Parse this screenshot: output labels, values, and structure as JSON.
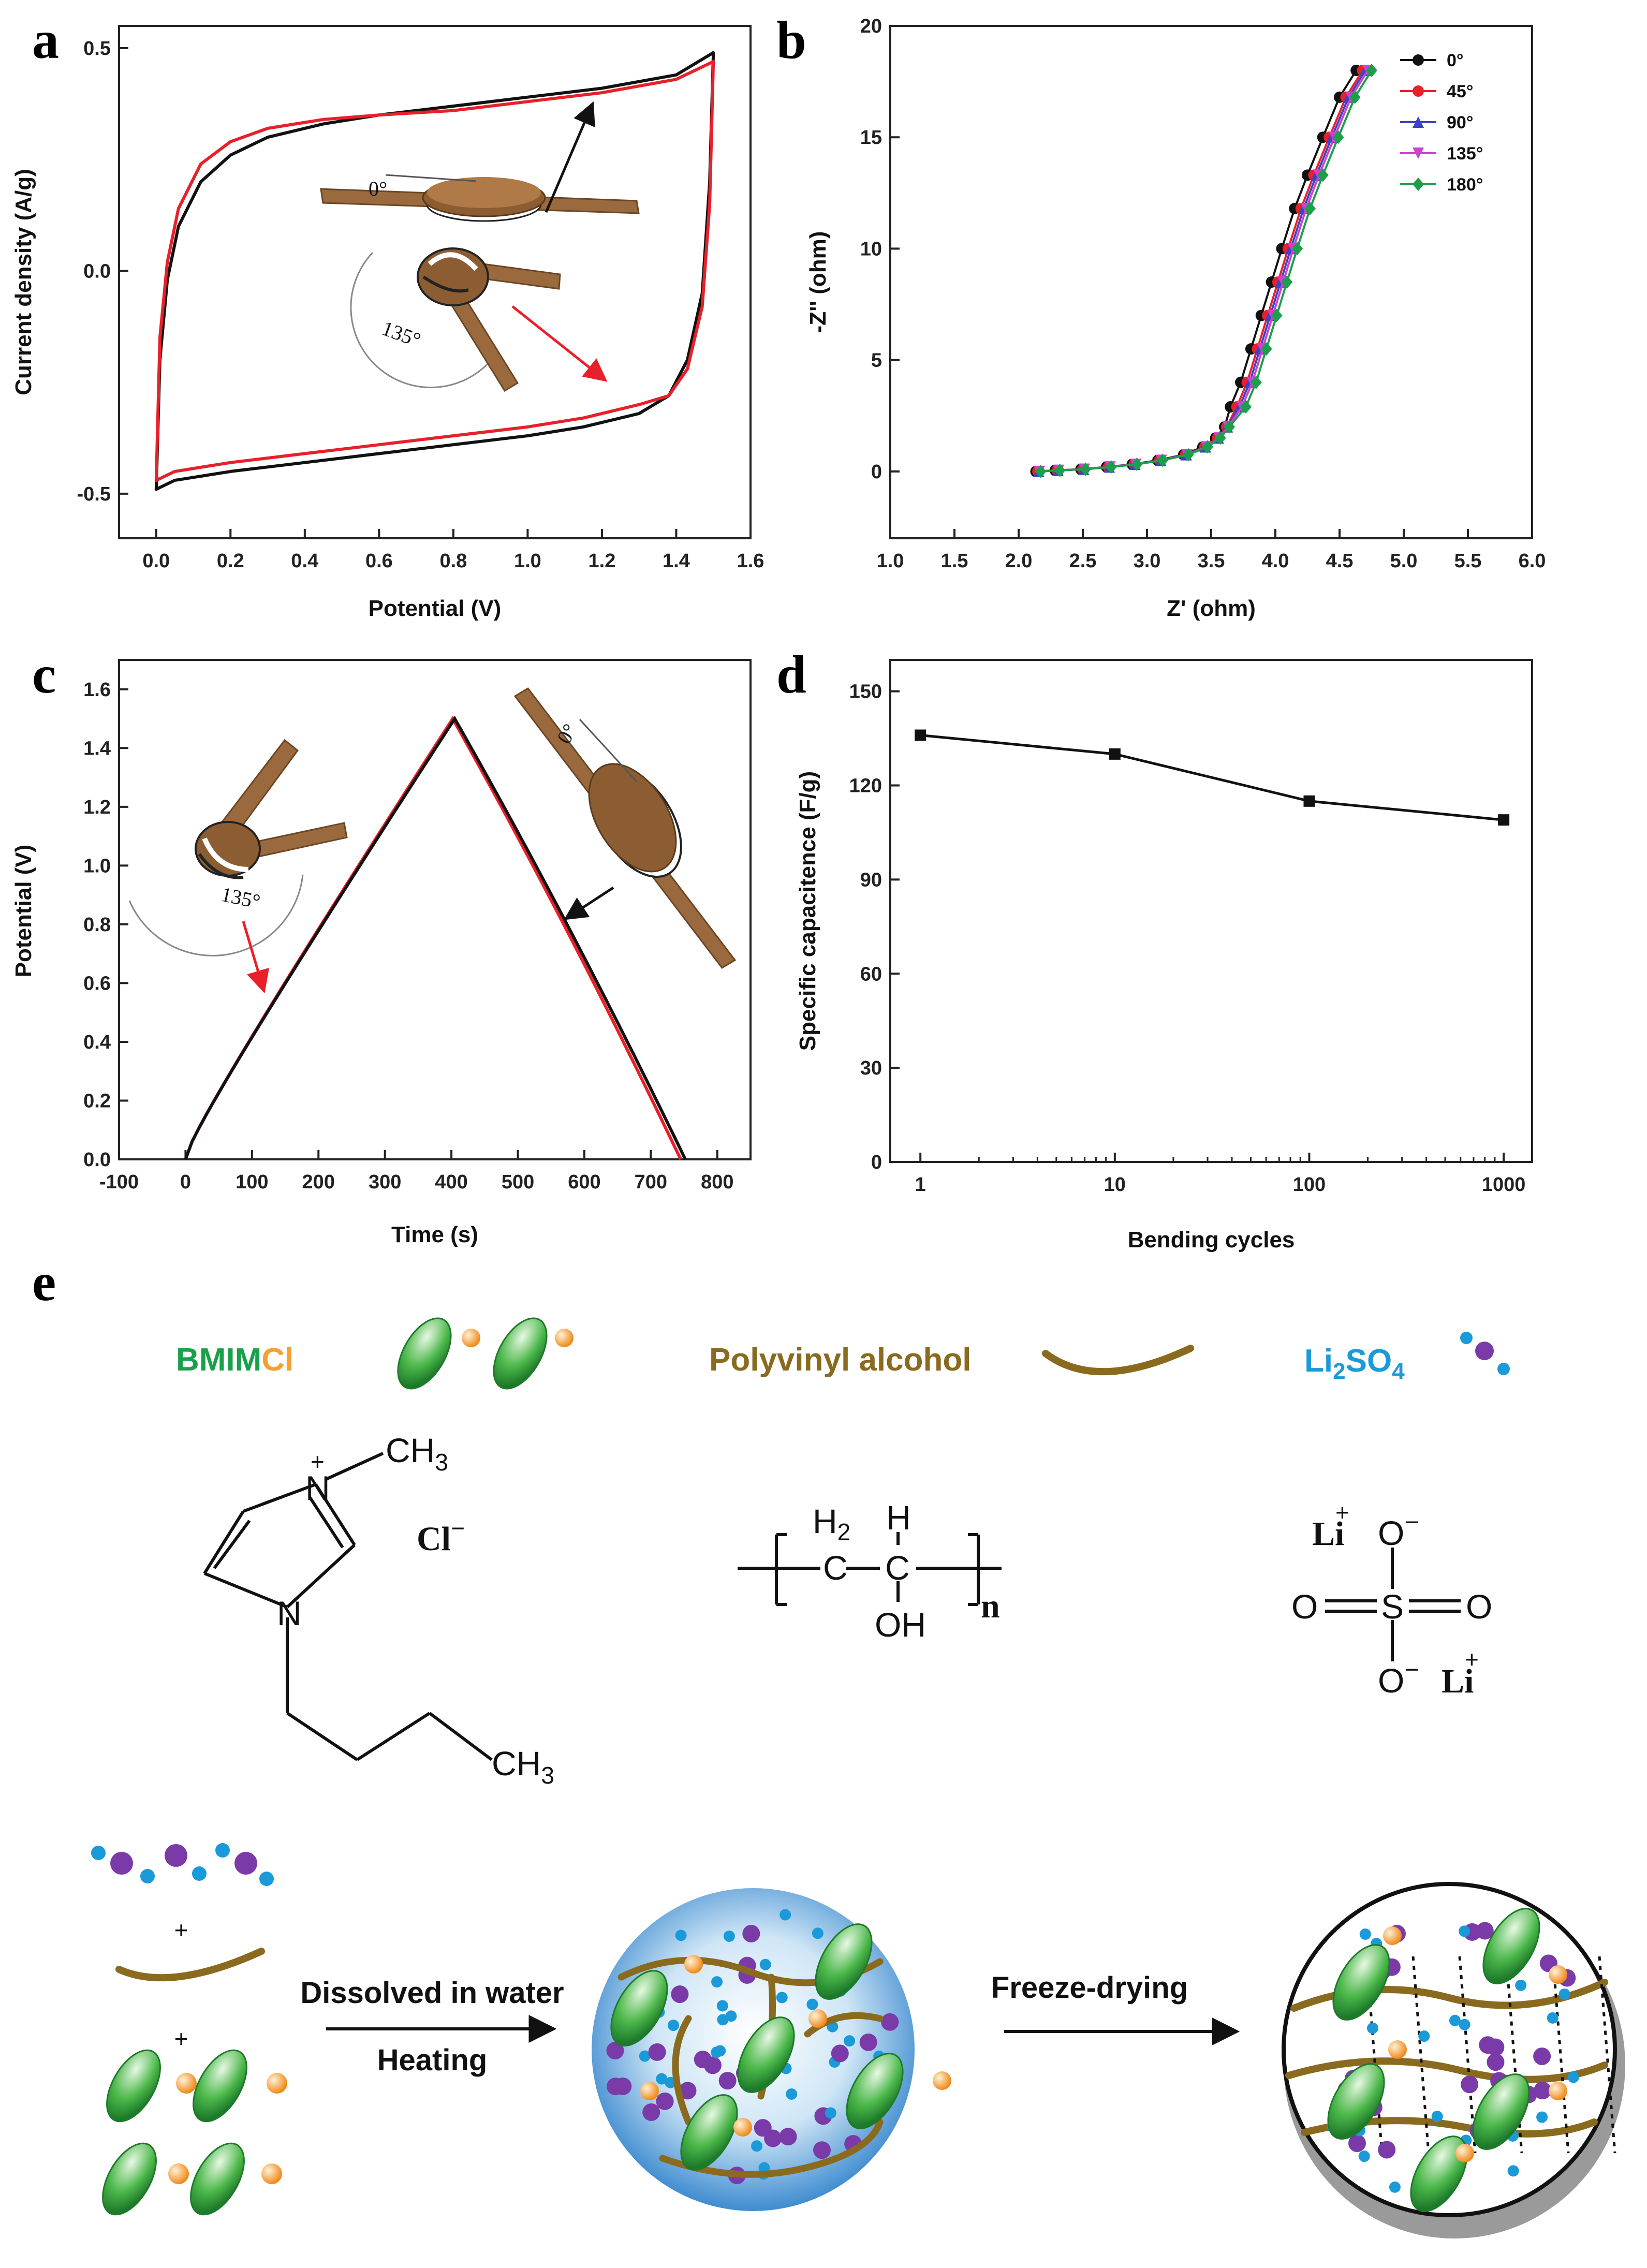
{
  "panels": {
    "a": "a",
    "b": "b",
    "c": "c",
    "d": "d",
    "e": "e"
  },
  "colors": {
    "black": "#111111",
    "red": "#e8202a",
    "blue": "#3b43c8",
    "magenta": "#d040d0",
    "green": "#1aa04a",
    "wood": "#9a6a3e",
    "ellipse": "#3aa83a",
    "orange": "#f5a030",
    "li_blue": "#1a9ad8",
    "so4_purple": "#7a3aa8"
  },
  "chart_data": [
    {
      "id": "a",
      "type": "line",
      "xlabel": "Potential (V)",
      "ylabel": "Current density (A/g)",
      "xlim": [
        -0.1,
        1.6
      ],
      "ylim": [
        -0.6,
        0.55
      ],
      "xticks": [
        "0.0",
        "0.2",
        "0.4",
        "0.6",
        "0.8",
        "1.0",
        "1.2",
        "1.4",
        "1.6"
      ],
      "yticks": [
        "-0.5",
        "0.0",
        "0.5"
      ],
      "inset_labels": {
        "flat": "0°",
        "bent": "135°"
      },
      "series": [
        {
          "color": "#111111",
          "upper": [
            [
              0.0,
              -0.49
            ],
            [
              0.01,
              -0.2
            ],
            [
              0.03,
              -0.02
            ],
            [
              0.06,
              0.1
            ],
            [
              0.12,
              0.2
            ],
            [
              0.2,
              0.26
            ],
            [
              0.3,
              0.3
            ],
            [
              0.45,
              0.33
            ],
            [
              0.6,
              0.35
            ],
            [
              0.8,
              0.37
            ],
            [
              1.0,
              0.39
            ],
            [
              1.2,
              0.41
            ],
            [
              1.4,
              0.44
            ],
            [
              1.5,
              0.49
            ]
          ],
          "lower": [
            [
              1.5,
              0.49
            ],
            [
              1.49,
              0.2
            ],
            [
              1.47,
              -0.05
            ],
            [
              1.43,
              -0.2
            ],
            [
              1.38,
              -0.28
            ],
            [
              1.3,
              -0.32
            ],
            [
              1.15,
              -0.35
            ],
            [
              1.0,
              -0.37
            ],
            [
              0.8,
              -0.39
            ],
            [
              0.6,
              -0.41
            ],
            [
              0.4,
              -0.43
            ],
            [
              0.2,
              -0.45
            ],
            [
              0.05,
              -0.47
            ],
            [
              0.0,
              -0.49
            ]
          ]
        },
        {
          "color": "#e8202a",
          "upper": [
            [
              0.0,
              -0.47
            ],
            [
              0.01,
              -0.15
            ],
            [
              0.03,
              0.02
            ],
            [
              0.06,
              0.14
            ],
            [
              0.12,
              0.24
            ],
            [
              0.2,
              0.29
            ],
            [
              0.3,
              0.32
            ],
            [
              0.45,
              0.34
            ],
            [
              0.6,
              0.35
            ],
            [
              0.8,
              0.36
            ],
            [
              1.0,
              0.38
            ],
            [
              1.2,
              0.4
            ],
            [
              1.4,
              0.43
            ],
            [
              1.5,
              0.47
            ]
          ],
          "lower": [
            [
              1.5,
              0.47
            ],
            [
              1.49,
              0.15
            ],
            [
              1.47,
              -0.08
            ],
            [
              1.43,
              -0.22
            ],
            [
              1.38,
              -0.28
            ],
            [
              1.3,
              -0.3
            ],
            [
              1.15,
              -0.33
            ],
            [
              1.0,
              -0.35
            ],
            [
              0.8,
              -0.37
            ],
            [
              0.6,
              -0.39
            ],
            [
              0.4,
              -0.41
            ],
            [
              0.2,
              -0.43
            ],
            [
              0.05,
              -0.45
            ],
            [
              0.0,
              -0.47
            ]
          ]
        }
      ]
    },
    {
      "id": "b",
      "type": "line",
      "xlabel": "Z' (ohm)",
      "ylabel": "-Z'' (ohm)",
      "xlim": [
        1.0,
        6.0
      ],
      "ylim": [
        -3,
        20
      ],
      "xticks": [
        "1.0",
        "1.5",
        "2.0",
        "2.5",
        "3.0",
        "3.5",
        "4.0",
        "4.5",
        "5.0",
        "5.5",
        "6.0"
      ],
      "yticks": [
        "0",
        "5",
        "10",
        "15",
        "20"
      ],
      "legend_position": "top-right",
      "series": [
        {
          "name": "0°",
          "color": "#111111",
          "marker": "circle",
          "dx": -0.05
        },
        {
          "name": "45°",
          "color": "#e8202a",
          "marker": "circle",
          "dx": 0.0
        },
        {
          "name": "90°",
          "color": "#3b43c8",
          "marker": "triangle-up",
          "dx": 0.02
        },
        {
          "name": "135°",
          "color": "#d040d0",
          "marker": "triangle-down",
          "dx": 0.04
        },
        {
          "name": "180°",
          "color": "#1aa04a",
          "marker": "diamond",
          "dx": 0.07
        }
      ],
      "base_curve": [
        [
          2.15,
          0.0
        ],
        [
          2.3,
          0.05
        ],
        [
          2.5,
          0.1
        ],
        [
          2.7,
          0.2
        ],
        [
          2.9,
          0.32
        ],
        [
          3.1,
          0.5
        ],
        [
          3.3,
          0.75
        ],
        [
          3.45,
          1.1
        ],
        [
          3.55,
          1.5
        ],
        [
          3.62,
          2.0
        ],
        [
          3.7,
          2.9
        ],
        [
          3.78,
          4.0
        ],
        [
          3.86,
          5.5
        ],
        [
          3.94,
          7.0
        ],
        [
          4.02,
          8.5
        ],
        [
          4.1,
          10.0
        ],
        [
          4.2,
          11.8
        ],
        [
          4.3,
          13.3
        ],
        [
          4.42,
          15.0
        ],
        [
          4.55,
          16.8
        ],
        [
          4.68,
          18.0
        ]
      ]
    },
    {
      "id": "c",
      "type": "line",
      "xlabel": "Time (s)",
      "ylabel": "Potential (V)",
      "xlim": [
        -100,
        850
      ],
      "ylim": [
        0.0,
        1.7
      ],
      "xticks": [
        "-100",
        "0",
        "100",
        "200",
        "300",
        "400",
        "500",
        "600",
        "700",
        "800"
      ],
      "yticks": [
        "0.0",
        "0.2",
        "0.4",
        "0.6",
        "0.8",
        "1.0",
        "1.2",
        "1.4",
        "1.6"
      ],
      "inset_labels": {
        "bent": "135°",
        "flat": "0°"
      },
      "series": [
        {
          "color": "#111111",
          "charge_end": 405,
          "discharge_end": 752,
          "vmax": 1.5
        },
        {
          "color": "#e8202a",
          "charge_end": 402,
          "discharge_end": 745,
          "vmax": 1.5
        }
      ]
    },
    {
      "id": "d",
      "type": "line",
      "xscale": "log",
      "xlabel": "Bending cycles",
      "ylabel": "Specific capacitence (F/g)",
      "xlim": [
        0.7,
        1400
      ],
      "ylim": [
        0,
        160
      ],
      "xticks": [
        "1",
        "10",
        "100",
        "1000"
      ],
      "yticks": [
        "0",
        "30",
        "60",
        "90",
        "120",
        "150"
      ],
      "x": [
        1,
        10,
        100,
        1000
      ],
      "values": [
        136,
        130,
        115,
        109
      ]
    }
  ],
  "scheme": {
    "bmim": "BMIM",
    "cl": "Cl",
    "pva": "Polyvinyl alcohol",
    "li": "Li",
    "li_sub": "2",
    "so4": "SO",
    "so4_sub": "4",
    "step1_top": "Dissolved in water",
    "step1_bottom": "Heating",
    "step2": "Freeze-drying",
    "plus": "+"
  },
  "structures": {
    "ch3": "CH",
    "ch3_sub": "3",
    "n": "N",
    "plus": "+",
    "cl_minus": "Cl",
    "minus": "−",
    "h2": "H",
    "h2_sub": "2",
    "h": "H",
    "c": "C",
    "oh": "OH",
    "n_sub": "n",
    "li": "Li",
    "o": "O",
    "s": "S"
  }
}
